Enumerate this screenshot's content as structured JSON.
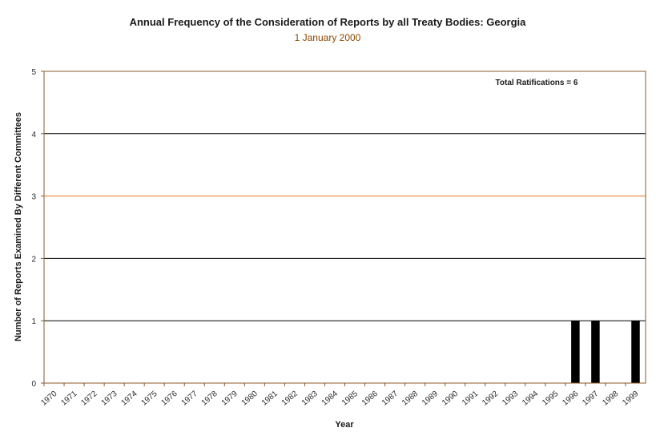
{
  "chart_data": {
    "type": "bar",
    "title": "Annual Frequency of the Consideration of Reports by all Treaty Bodies: Georgia",
    "subtitle": "1 January 2000",
    "xlabel": "Year",
    "ylabel": "Number of Reports Examined By Different Committees",
    "ylim": [
      0,
      5
    ],
    "yticks": [
      0,
      1,
      2,
      3,
      4,
      5
    ],
    "categories": [
      "1970",
      "1971",
      "1972",
      "1973",
      "1974",
      "1975",
      "1976",
      "1977",
      "1978",
      "1979",
      "1980",
      "1981",
      "1982",
      "1983",
      "1984",
      "1985",
      "1986",
      "1987",
      "1988",
      "1989",
      "1990",
      "1991",
      "1992",
      "1993",
      "1994",
      "1995",
      "1996",
      "1997",
      "1998",
      "1999"
    ],
    "values": [
      0,
      0,
      0,
      0,
      0,
      0,
      0,
      0,
      0,
      0,
      0,
      0,
      0,
      0,
      0,
      0,
      0,
      0,
      0,
      0,
      0,
      0,
      0,
      0,
      0,
      0,
      1,
      1,
      0,
      1
    ],
    "annotation": "Total Ratifications = 6",
    "grid": true,
    "legend": "none",
    "colors": {
      "bar": "#000000",
      "accent_grid": "#e07b1f",
      "grid": "#000000",
      "axis": "#8b5a2b"
    }
  }
}
